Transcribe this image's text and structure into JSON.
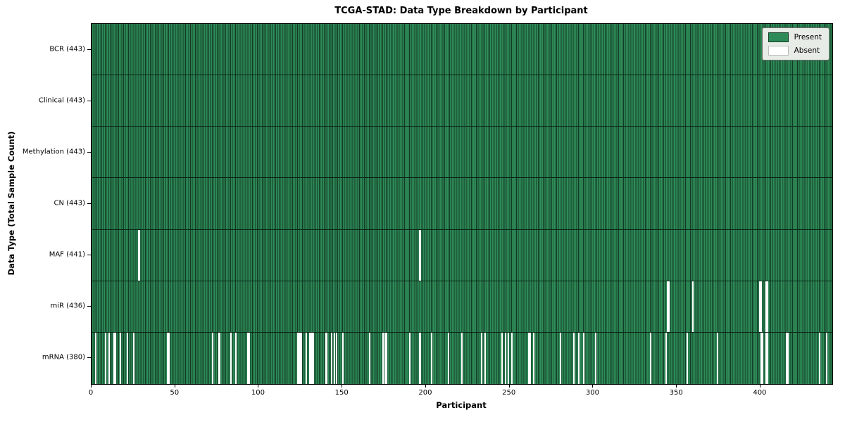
{
  "title": "TCGA-STAD: Data Type Breakdown by Participant",
  "xlabel": "Participant",
  "ylabel": "Data Type (Total Sample Count)",
  "legend": {
    "present_label": "Present",
    "absent_label": "Absent",
    "position": "upper right"
  },
  "colors": {
    "present": "#2e8b57",
    "present_edge": "#123a25",
    "absent": "#ffffff",
    "row_separator": "#0a2315",
    "plot_border": "#000000",
    "legend_bg": "#e7ece7",
    "legend_border": "#6b6b6b",
    "text": "#000000"
  },
  "chart_data": {
    "type": "heatmap",
    "title": "TCGA-STAD: Data Type Breakdown by Participant",
    "xlabel": "Participant",
    "ylabel": "Data Type (Total Sample Count)",
    "legend_entries": [
      "Present",
      "Absent"
    ],
    "legend_position": "upper right",
    "grid": false,
    "x_axis": {
      "label": "Participant",
      "min": 0,
      "max": 443,
      "ticks": [
        0,
        50,
        100,
        150,
        200,
        250,
        300,
        350,
        400
      ]
    },
    "total_participants": 443,
    "rows": [
      {
        "label": "BCR (443)",
        "data_type": "BCR",
        "present_count": 443,
        "absent_participants": []
      },
      {
        "label": "Clinical (443)",
        "data_type": "Clinical",
        "present_count": 443,
        "absent_participants": []
      },
      {
        "label": "Methylation (443)",
        "data_type": "Methylation",
        "present_count": 443,
        "absent_participants": []
      },
      {
        "label": "CN (443)",
        "data_type": "CN",
        "present_count": 443,
        "absent_participants": []
      },
      {
        "label": "MAF (441)",
        "data_type": "MAF",
        "present_count": 441,
        "absent_participants": [
          28,
          196
        ]
      },
      {
        "label": "miR (436)",
        "data_type": "miR",
        "present_count": 436,
        "absent_participants": [
          344,
          345,
          359,
          399,
          400,
          403,
          404
        ]
      },
      {
        "label": "mRNA (380)",
        "data_type": "mRNA",
        "present_count": 380,
        "absent_participants": [
          2,
          8,
          10,
          13,
          14,
          17,
          21,
          25,
          45,
          46,
          72,
          76,
          83,
          86,
          93,
          94,
          123,
          124,
          125,
          128,
          130,
          131,
          132,
          140,
          143,
          145,
          146,
          150,
          166,
          174,
          175,
          176,
          190,
          196,
          203,
          213,
          221,
          233,
          235,
          245,
          247,
          249,
          251,
          261,
          262,
          264,
          280,
          288,
          291,
          294,
          301,
          334,
          343,
          356,
          374,
          400,
          401,
          403,
          404,
          415,
          416,
          435,
          439
        ]
      }
    ]
  }
}
